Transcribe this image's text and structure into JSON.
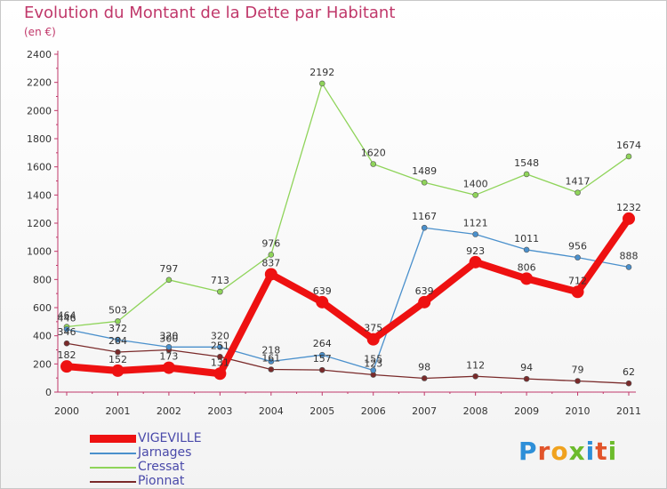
{
  "header": {
    "title": "Evolution du Montant de la Dette par Habitant",
    "subtitle": "(en €)"
  },
  "logo": {
    "text": "Proxiti",
    "letter_colors": [
      "#2e8fd8",
      "#e2542a",
      "#f0a21e",
      "#6cbb2c",
      "#2e8fd8",
      "#e2542a",
      "#6cbb2c"
    ]
  },
  "chart_data": {
    "type": "line",
    "title": "Evolution du Montant de la Dette par Habitant",
    "subtitle": "(en €)",
    "x": [
      "2000",
      "2001",
      "2002",
      "2003",
      "2004",
      "2005",
      "2006",
      "2007",
      "2008",
      "2009",
      "2010",
      "2011"
    ],
    "ylim": [
      0,
      2400
    ],
    "yticks": [
      0,
      200,
      400,
      600,
      800,
      1000,
      1200,
      1400,
      1600,
      1800,
      2000,
      2200,
      2400
    ],
    "grid": false,
    "legend_position": "bottom-left",
    "series": [
      {
        "name": "VIGEVILLE",
        "color": "#ee1111",
        "values": [
          182,
          152,
          173,
          131,
          837,
          639,
          375,
          639,
          923,
          806,
          712,
          1232
        ],
        "labels": [
          "182",
          "152",
          "173",
          "131",
          "837",
          "639",
          "375",
          "639",
          "923",
          "806",
          "712",
          "1232"
        ]
      },
      {
        "name": "Jarnages",
        "color": "#4a90cc",
        "values": [
          446,
          372,
          320,
          320,
          218,
          264,
          155,
          1167,
          1121,
          1011,
          956,
          888
        ],
        "labels": [
          "446",
          "372",
          "320",
          "320",
          "218",
          "264",
          "155",
          "1167",
          "1121",
          "1011",
          "956",
          "888"
        ]
      },
      {
        "name": "Cressat",
        "color": "#8fd45a",
        "values": [
          464,
          503,
          797,
          713,
          976,
          2192,
          1620,
          1489,
          1400,
          1548,
          1417,
          1674
        ],
        "labels": [
          "464",
          "503",
          "797",
          "713",
          "976",
          "2192",
          "1620",
          "1489",
          "1400",
          "1548",
          "1417",
          "1674"
        ]
      },
      {
        "name": "Pionnat",
        "color": "#7a2a2a",
        "values": [
          346,
          284,
          300,
          251,
          161,
          157,
          123,
          98,
          112,
          94,
          79,
          62
        ],
        "labels": [
          "346",
          "284",
          "300",
          "251",
          "161",
          "157",
          "123",
          "98",
          "112",
          "94",
          "79",
          "62"
        ]
      }
    ]
  }
}
